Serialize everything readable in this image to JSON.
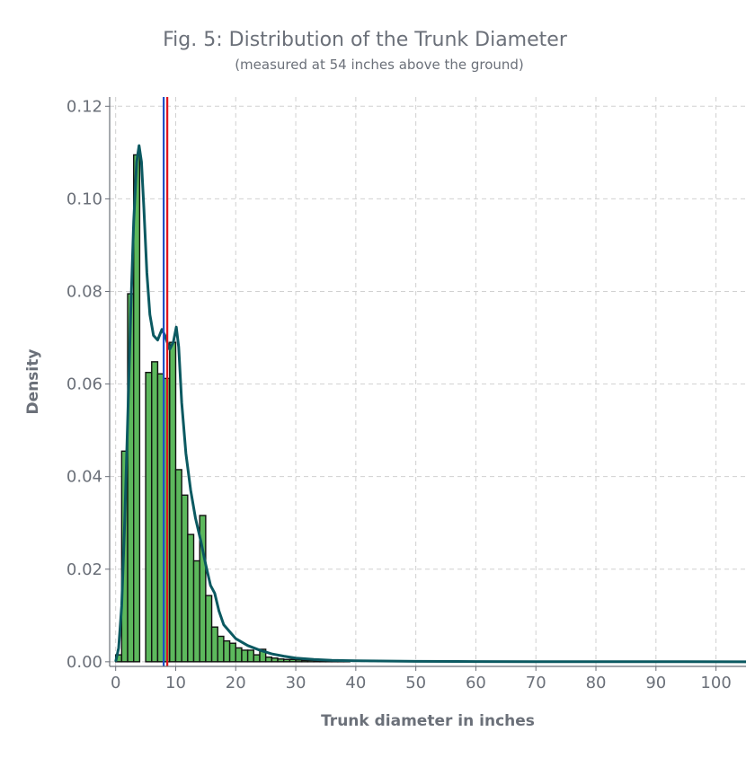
{
  "chart_data": {
    "type": "histogram",
    "title": "Fig. 5: Distribution of the Trunk Diameter",
    "subtitle": "(measured at 54 inches above the ground)",
    "xlabel": "Trunk diameter in inches",
    "ylabel": "Density",
    "xlim": [
      -1,
      105
    ],
    "ylim": [
      -0.001,
      0.122
    ],
    "x_ticks": [
      0,
      10,
      20,
      30,
      40,
      50,
      60,
      70,
      80,
      90,
      100
    ],
    "y_ticks": [
      0.0,
      0.02,
      0.04,
      0.06,
      0.08,
      0.1,
      0.12
    ],
    "y_tick_labels": [
      "0.00",
      "0.02",
      "0.04",
      "0.06",
      "0.08",
      "0.10",
      "0.12"
    ],
    "grid": true,
    "bins": [
      {
        "x0": 0,
        "x1": 1,
        "density": 0.0015
      },
      {
        "x0": 1,
        "x1": 2,
        "density": 0.0455
      },
      {
        "x0": 2,
        "x1": 3,
        "density": 0.0795
      },
      {
        "x0": 3,
        "x1": 4,
        "density": 0.1095
      },
      {
        "x0": 4,
        "x1": 5,
        "density": 0.0
      },
      {
        "x0": 5,
        "x1": 6,
        "density": 0.0625
      },
      {
        "x0": 6,
        "x1": 7,
        "density": 0.0648
      },
      {
        "x0": 7,
        "x1": 8,
        "density": 0.0622
      },
      {
        "x0": 8,
        "x1": 9,
        "density": 0.0612
      },
      {
        "x0": 9,
        "x1": 10,
        "density": 0.069
      },
      {
        "x0": 10,
        "x1": 11,
        "density": 0.0415
      },
      {
        "x0": 11,
        "x1": 12,
        "density": 0.036
      },
      {
        "x0": 12,
        "x1": 13,
        "density": 0.0275
      },
      {
        "x0": 13,
        "x1": 14,
        "density": 0.0218
      },
      {
        "x0": 14,
        "x1": 15,
        "density": 0.0316
      },
      {
        "x0": 15,
        "x1": 16,
        "density": 0.0143
      },
      {
        "x0": 16,
        "x1": 17,
        "density": 0.0075
      },
      {
        "x0": 17,
        "x1": 18,
        "density": 0.0055
      },
      {
        "x0": 18,
        "x1": 19,
        "density": 0.0045
      },
      {
        "x0": 19,
        "x1": 20,
        "density": 0.004
      },
      {
        "x0": 20,
        "x1": 21,
        "density": 0.003
      },
      {
        "x0": 21,
        "x1": 22,
        "density": 0.0025
      },
      {
        "x0": 22,
        "x1": 23,
        "density": 0.0025
      },
      {
        "x0": 23,
        "x1": 24,
        "density": 0.0015
      },
      {
        "x0": 24,
        "x1": 25,
        "density": 0.0027
      },
      {
        "x0": 25,
        "x1": 26,
        "density": 0.001
      },
      {
        "x0": 26,
        "x1": 27,
        "density": 0.0008
      },
      {
        "x0": 27,
        "x1": 28,
        "density": 0.0006
      },
      {
        "x0": 28,
        "x1": 29,
        "density": 0.0005
      },
      {
        "x0": 29,
        "x1": 30,
        "density": 0.0005
      },
      {
        "x0": 30,
        "x1": 31,
        "density": 0.0004
      },
      {
        "x0": 31,
        "x1": 32,
        "density": 0.0003
      },
      {
        "x0": 32,
        "x1": 33,
        "density": 0.0003
      },
      {
        "x0": 33,
        "x1": 34,
        "density": 0.0002
      },
      {
        "x0": 34,
        "x1": 35,
        "density": 0.0002
      },
      {
        "x0": 35,
        "x1": 36,
        "density": 0.0001
      },
      {
        "x0": 36,
        "x1": 37,
        "density": 0.0001
      },
      {
        "x0": 37,
        "x1": 38,
        "density": 0.0001
      },
      {
        "x0": 38,
        "x1": 39,
        "density": 0.0001
      }
    ],
    "density_curve": [
      [
        0,
        0.0
      ],
      [
        0.5,
        0.003
      ],
      [
        1,
        0.012
      ],
      [
        1.5,
        0.03
      ],
      [
        2,
        0.052
      ],
      [
        2.5,
        0.075
      ],
      [
        3,
        0.095
      ],
      [
        3.5,
        0.108
      ],
      [
        3.9,
        0.1115
      ],
      [
        4.3,
        0.108
      ],
      [
        4.7,
        0.098
      ],
      [
        5.2,
        0.084
      ],
      [
        5.7,
        0.075
      ],
      [
        6.3,
        0.0705
      ],
      [
        7,
        0.0695
      ],
      [
        7.7,
        0.0718
      ],
      [
        8.2,
        0.0705
      ],
      [
        9,
        0.0675
      ],
      [
        9.6,
        0.069
      ],
      [
        10.1,
        0.0723
      ],
      [
        10.5,
        0.068
      ],
      [
        11,
        0.056
      ],
      [
        11.7,
        0.045
      ],
      [
        12.5,
        0.037
      ],
      [
        13.3,
        0.031
      ],
      [
        14.2,
        0.026
      ],
      [
        15,
        0.021
      ],
      [
        15.8,
        0.0165
      ],
      [
        16.5,
        0.0148
      ],
      [
        17.2,
        0.011
      ],
      [
        18,
        0.008
      ],
      [
        19,
        0.0065
      ],
      [
        20,
        0.005
      ],
      [
        22,
        0.0035
      ],
      [
        24,
        0.0025
      ],
      [
        26,
        0.0017
      ],
      [
        28,
        0.0012
      ],
      [
        30,
        0.0008
      ],
      [
        33,
        0.0005
      ],
      [
        36,
        0.0003
      ],
      [
        40,
        0.0002
      ],
      [
        50,
        0.0001
      ],
      [
        60,
        5e-05
      ],
      [
        70,
        3e-05
      ],
      [
        80,
        2e-05
      ],
      [
        90,
        1e-05
      ],
      [
        105,
        0.0
      ]
    ],
    "reference_lines": [
      {
        "x": 8.0,
        "color": "#1f4fc7"
      },
      {
        "x": 8.6,
        "color": "#e0141e"
      }
    ],
    "colors": {
      "bar_fill": "#5cb85c",
      "bar_edge": "#111111",
      "density_line": "#0b5961",
      "text": "#6b7079",
      "grid": "#d0d0d0"
    }
  }
}
